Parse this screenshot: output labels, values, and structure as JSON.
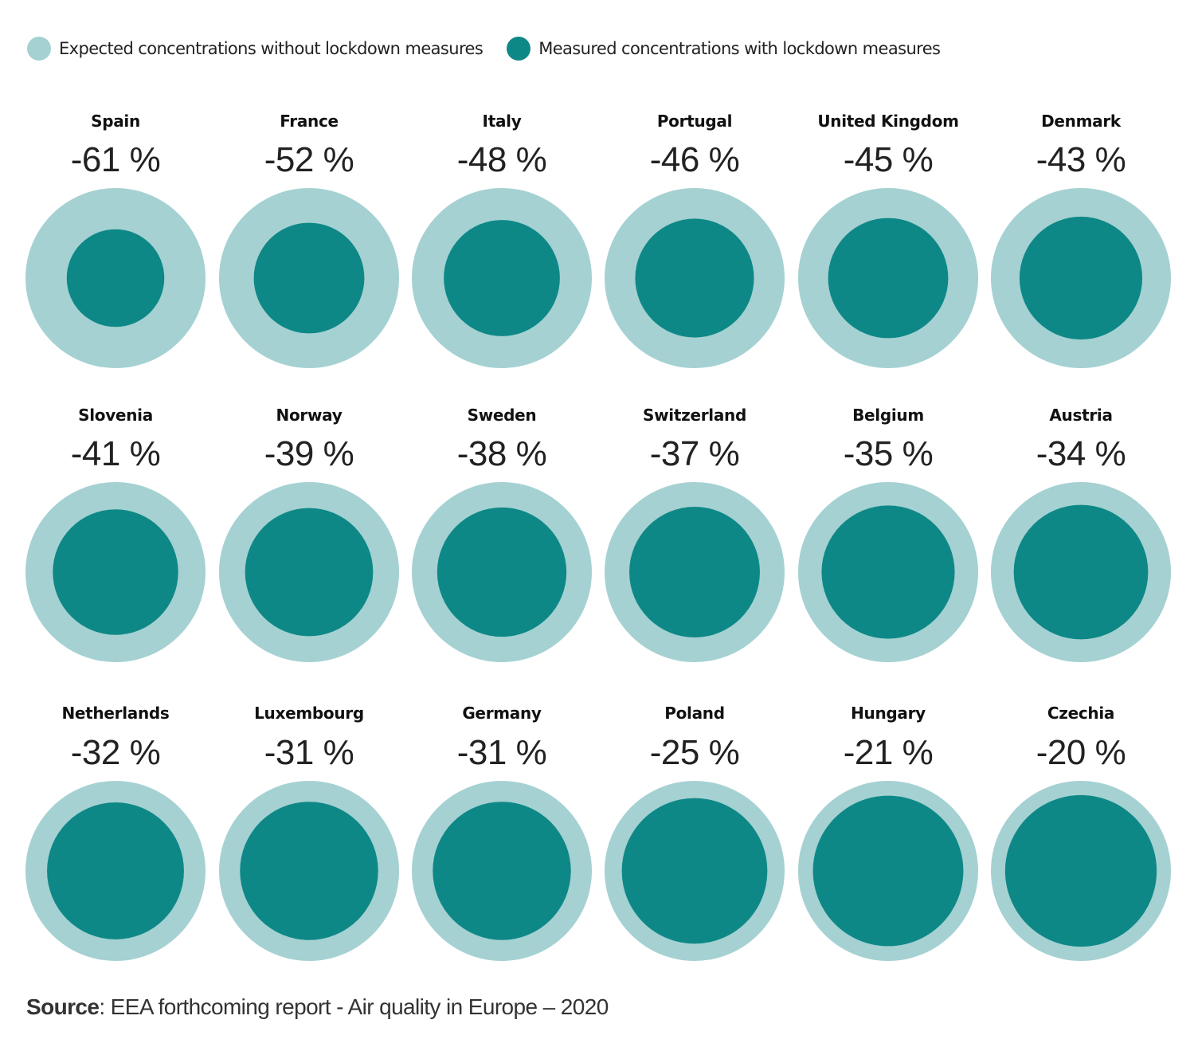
{
  "colors": {
    "expected": "#a5d1d2",
    "measured": "#0e8887"
  },
  "legend": [
    {
      "label": "Expected concentrations without lockdown measures",
      "color": "#a5d1d2"
    },
    {
      "label": "Measured concentrations with lockdown measures",
      "color": "#0e8887"
    }
  ],
  "chart_data": {
    "type": "bubble-comparison",
    "unit": "%",
    "series": [
      {
        "name": "Expected concentrations without lockdown measures"
      },
      {
        "name": "Measured concentrations with lockdown measures"
      }
    ],
    "items": [
      {
        "country": "Spain",
        "change": -61,
        "label": "-61 %"
      },
      {
        "country": "France",
        "change": -52,
        "label": "-52 %"
      },
      {
        "country": "Italy",
        "change": -48,
        "label": "-48 %"
      },
      {
        "country": "Portugal",
        "change": -46,
        "label": "-46 %"
      },
      {
        "country": "United Kingdom",
        "change": -45,
        "label": "-45 %"
      },
      {
        "country": "Denmark",
        "change": -43,
        "label": "-43 %"
      },
      {
        "country": "Slovenia",
        "change": -41,
        "label": "-41 %"
      },
      {
        "country": "Norway",
        "change": -39,
        "label": "-39 %"
      },
      {
        "country": "Sweden",
        "change": -38,
        "label": "-38 %"
      },
      {
        "country": "Switzerland",
        "change": -37,
        "label": "-37 %"
      },
      {
        "country": "Belgium",
        "change": -35,
        "label": "-35 %"
      },
      {
        "country": "Austria",
        "change": -34,
        "label": "-34 %"
      },
      {
        "country": "Netherlands",
        "change": -32,
        "label": "-32 %"
      },
      {
        "country": "Luxembourg",
        "change": -31,
        "label": "-31 %"
      },
      {
        "country": "Germany",
        "change": -31,
        "label": "-31 %"
      },
      {
        "country": "Poland",
        "change": -25,
        "label": "-25 %"
      },
      {
        "country": "Hungary",
        "change": -21,
        "label": "-21 %"
      },
      {
        "country": "Czechia",
        "change": -20,
        "label": "-20 %"
      }
    ]
  },
  "source": {
    "label": "Source",
    "text": ": EEA forthcoming report - Air quality in Europe – 2020"
  }
}
